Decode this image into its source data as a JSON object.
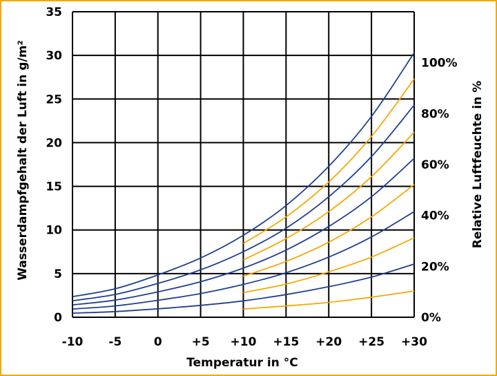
{
  "chart_data": {
    "type": "line",
    "title": "",
    "xlabel": "Temperatur in °C",
    "ylabel": "Wasserdampfgehalt der Luft in g/m²",
    "y2label": "Relative Luftfeuchte in %",
    "xlim": [
      -10,
      30
    ],
    "ylim": [
      0,
      35
    ],
    "y2lim": [
      0,
      120
    ],
    "grid": true,
    "x_ticks": [
      -10,
      -5,
      0,
      5,
      10,
      15,
      20,
      25,
      30
    ],
    "x_tick_labels": [
      "-10",
      "-5",
      "0",
      "+5",
      "+10",
      "+15",
      "+20",
      "+25",
      "+30"
    ],
    "y_ticks": [
      0,
      5,
      10,
      15,
      20,
      25,
      30,
      35
    ],
    "y_tick_labels": [
      "0",
      "5",
      "10",
      "15",
      "20",
      "25",
      "30",
      "35"
    ],
    "y2_ticks": [
      0,
      20,
      40,
      60,
      80,
      100
    ],
    "y2_tick_labels": [
      "0%",
      "20%",
      "40%",
      "60%",
      "80%",
      "100%"
    ],
    "x": [
      -10,
      -5,
      0,
      5,
      10,
      15,
      20,
      25,
      30
    ],
    "series": [
      {
        "color": "#1f3f8f",
        "x_start": -10,
        "values": [
          2.36,
          3.26,
          4.85,
          6.79,
          9.39,
          12.8,
          17.3,
          23.0,
          30.3
        ]
      },
      {
        "color": "#1f3f8f",
        "x_start": -10,
        "values": [
          1.89,
          2.61,
          3.88,
          5.43,
          7.51,
          10.2,
          13.8,
          18.4,
          24.3
        ]
      },
      {
        "color": "#1f3f8f",
        "x_start": -10,
        "values": [
          1.42,
          1.96,
          2.91,
          4.07,
          5.63,
          7.7,
          10.4,
          13.8,
          18.2
        ]
      },
      {
        "color": "#1f3f8f",
        "x_start": -10,
        "values": [
          0.94,
          1.3,
          1.94,
          2.72,
          3.76,
          5.1,
          6.9,
          9.2,
          12.1
        ]
      },
      {
        "color": "#1f3f8f",
        "x_start": -10,
        "values": [
          0.47,
          0.65,
          0.97,
          1.36,
          1.88,
          2.6,
          3.5,
          4.6,
          6.1
        ]
      },
      {
        "color": "#f5a800",
        "x_start": 10,
        "values": [
          null,
          null,
          null,
          null,
          8.45,
          11.5,
          15.5,
          20.7,
          27.3
        ]
      },
      {
        "color": "#f5a800",
        "x_start": 10,
        "values": [
          null,
          null,
          null,
          null,
          6.57,
          9.0,
          12.1,
          16.1,
          21.2
        ]
      },
      {
        "color": "#f5a800",
        "x_start": 10,
        "values": [
          null,
          null,
          null,
          null,
          4.7,
          6.4,
          8.6,
          11.5,
          15.2
        ]
      },
      {
        "color": "#f5a800",
        "x_start": 10,
        "values": [
          null,
          null,
          null,
          null,
          2.82,
          3.8,
          5.2,
          6.9,
          9.1
        ]
      },
      {
        "color": "#f5a800",
        "x_start": 10,
        "values": [
          null,
          null,
          null,
          null,
          0.94,
          1.3,
          1.7,
          2.3,
          3.0
        ]
      }
    ]
  }
}
